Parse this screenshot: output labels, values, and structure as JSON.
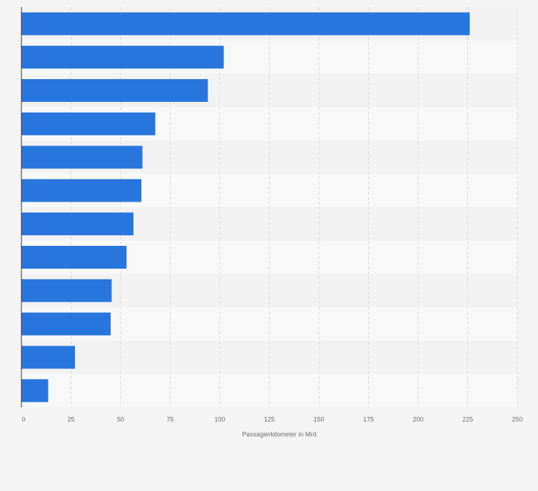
{
  "chart_data": {
    "type": "bar",
    "orientation": "horizontal",
    "categories": [
      "",
      "",
      "",
      "",
      "",
      "",
      "",
      "",
      "",
      "",
      "",
      ""
    ],
    "values": [
      226,
      102,
      94,
      67.5,
      61,
      60.5,
      56.5,
      53,
      45.5,
      45,
      27,
      13.5
    ],
    "title": "",
    "xlabel": "Passagierkilometer in Mrd.",
    "ylabel": "",
    "xlim": [
      0,
      250
    ],
    "xticks": [
      "0",
      "25",
      "50",
      "75",
      "100",
      "125",
      "150",
      "175",
      "200",
      "225",
      "250"
    ],
    "grid": true,
    "colors": {
      "bar": "#2876dd",
      "band_dark": "#f2f2f2",
      "band_light": "#f8f8f8",
      "grid": "#d8d8d8",
      "axis": "#333333"
    }
  }
}
